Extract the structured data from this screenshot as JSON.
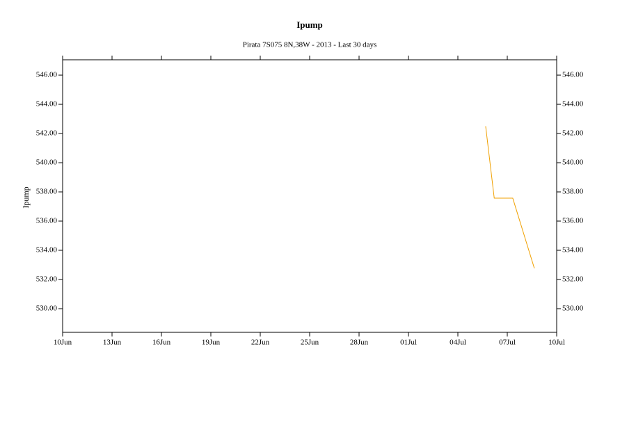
{
  "chart_data": {
    "type": "line",
    "title": "Ipump",
    "subtitle": "Pirata 7S075 8N,38W - 2013 - Last 30 days",
    "y_label": "Ipump",
    "x": [
      "2013-07-05T16:30",
      "2013-07-06T05:00",
      "2013-07-07T08:00",
      "2013-07-08T15:30"
    ],
    "series": [
      {
        "name": "Ipump",
        "color": "#f0a000",
        "values": [
          542.5,
          537.57,
          537.57,
          532.76
        ]
      }
    ],
    "xlim": [
      "2013-06-10",
      "2013-07-10"
    ],
    "xticks": [
      {
        "value": "2013-06-10",
        "label": "10Jun"
      },
      {
        "value": "2013-06-13",
        "label": "13Jun"
      },
      {
        "value": "2013-06-16",
        "label": "16Jun"
      },
      {
        "value": "2013-06-19",
        "label": "19Jun"
      },
      {
        "value": "2013-06-22",
        "label": "22Jun"
      },
      {
        "value": "2013-06-25",
        "label": "25Jun"
      },
      {
        "value": "2013-06-28",
        "label": "28Jun"
      },
      {
        "value": "2013-07-01",
        "label": "01Jul"
      },
      {
        "value": "2013-07-04",
        "label": "04Jul"
      },
      {
        "value": "2013-07-07",
        "label": "07Jul"
      },
      {
        "value": "2013-07-10",
        "label": "10Jul"
      }
    ],
    "ylim": [
      528.38,
      547.05
    ],
    "yticks": [
      {
        "value": 530,
        "label": "530.00"
      },
      {
        "value": 532,
        "label": "532.00"
      },
      {
        "value": 534,
        "label": "534.00"
      },
      {
        "value": 536,
        "label": "536.00"
      },
      {
        "value": 538,
        "label": "538.00"
      },
      {
        "value": 540,
        "label": "540.00"
      },
      {
        "value": 542,
        "label": "542.00"
      },
      {
        "value": 544,
        "label": "544.00"
      },
      {
        "value": 546,
        "label": "546.00"
      }
    ],
    "grid": false
  }
}
